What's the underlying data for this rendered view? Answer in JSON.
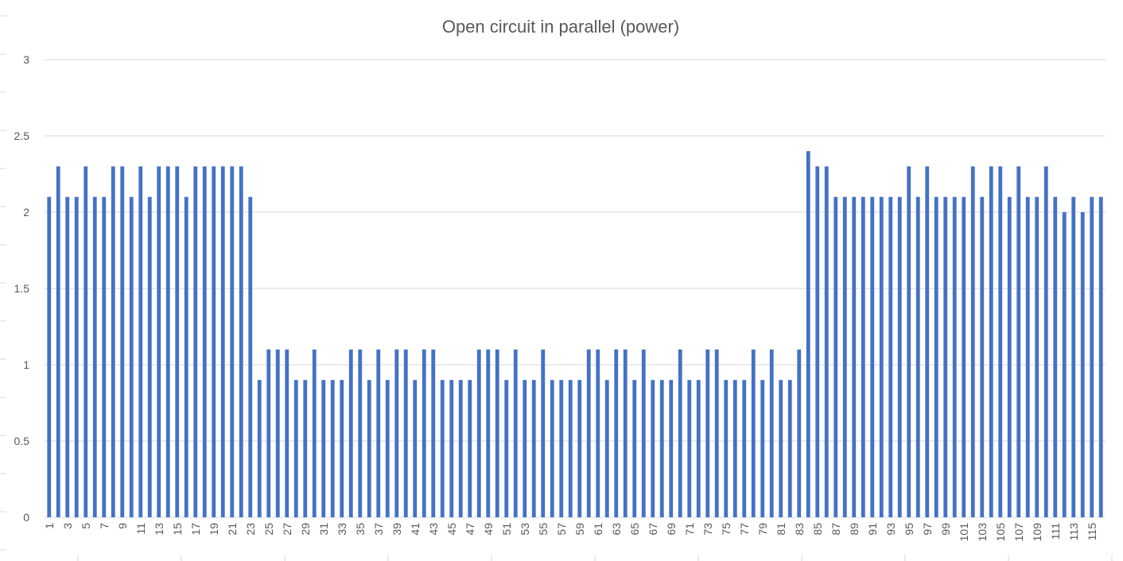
{
  "chart_data": {
    "type": "bar",
    "title": "Open circuit in parallel (power)",
    "xlabel": "",
    "ylabel": "",
    "ylim": [
      0,
      3
    ],
    "y_ticks": [
      "0",
      "0.5",
      "1",
      "1.5",
      "2",
      "2.5",
      "3"
    ],
    "grid": true,
    "legend": "none",
    "bar_color": "#4472c4",
    "x_label_every": 2,
    "categories": [
      "1",
      "2",
      "3",
      "4",
      "5",
      "6",
      "7",
      "8",
      "9",
      "10",
      "11",
      "12",
      "13",
      "14",
      "15",
      "16",
      "17",
      "18",
      "19",
      "20",
      "21",
      "22",
      "23",
      "24",
      "25",
      "26",
      "27",
      "28",
      "29",
      "30",
      "31",
      "32",
      "33",
      "34",
      "35",
      "36",
      "37",
      "38",
      "39",
      "40",
      "41",
      "42",
      "43",
      "44",
      "45",
      "46",
      "47",
      "48",
      "49",
      "50",
      "51",
      "52",
      "53",
      "54",
      "55",
      "56",
      "57",
      "58",
      "59",
      "60",
      "61",
      "62",
      "63",
      "64",
      "65",
      "66",
      "67",
      "68",
      "69",
      "70",
      "71",
      "72",
      "73",
      "74",
      "75",
      "76",
      "77",
      "78",
      "79",
      "80",
      "81",
      "82",
      "83",
      "84",
      "85",
      "86",
      "87",
      "88",
      "89",
      "90",
      "91",
      "92",
      "93",
      "94",
      "95",
      "96",
      "97",
      "98",
      "99",
      "100",
      "101",
      "102",
      "103",
      "104",
      "105",
      "106",
      "107",
      "108",
      "109",
      "110",
      "111",
      "112",
      "113",
      "114",
      "115",
      "116"
    ],
    "values": [
      2.1,
      2.3,
      2.1,
      2.1,
      2.3,
      2.1,
      2.1,
      2.3,
      2.3,
      2.1,
      2.3,
      2.1,
      2.3,
      2.3,
      2.3,
      2.1,
      2.3,
      2.3,
      2.3,
      2.3,
      2.3,
      2.3,
      2.1,
      0.9,
      1.1,
      1.1,
      1.1,
      0.9,
      0.9,
      1.1,
      0.9,
      0.9,
      0.9,
      1.1,
      1.1,
      0.9,
      1.1,
      0.9,
      1.1,
      1.1,
      0.9,
      1.1,
      1.1,
      0.9,
      0.9,
      0.9,
      0.9,
      1.1,
      1.1,
      1.1,
      0.9,
      1.1,
      0.9,
      0.9,
      1.1,
      0.9,
      0.9,
      0.9,
      0.9,
      1.1,
      1.1,
      0.9,
      1.1,
      1.1,
      0.9,
      1.1,
      0.9,
      0.9,
      0.9,
      1.1,
      0.9,
      0.9,
      1.1,
      1.1,
      0.9,
      0.9,
      0.9,
      1.1,
      0.9,
      1.1,
      0.9,
      0.9,
      1.1,
      2.4,
      2.3,
      2.3,
      2.1,
      2.1,
      2.1,
      2.1,
      2.1,
      2.1,
      2.1,
      2.1,
      2.3,
      2.1,
      2.3,
      2.1,
      2.1,
      2.1,
      2.1,
      2.3,
      2.1,
      2.3,
      2.3,
      2.1,
      2.3,
      2.1,
      2.1,
      2.3,
      2.1,
      2.0,
      2.1,
      2.0,
      2.1,
      2.1
    ]
  }
}
